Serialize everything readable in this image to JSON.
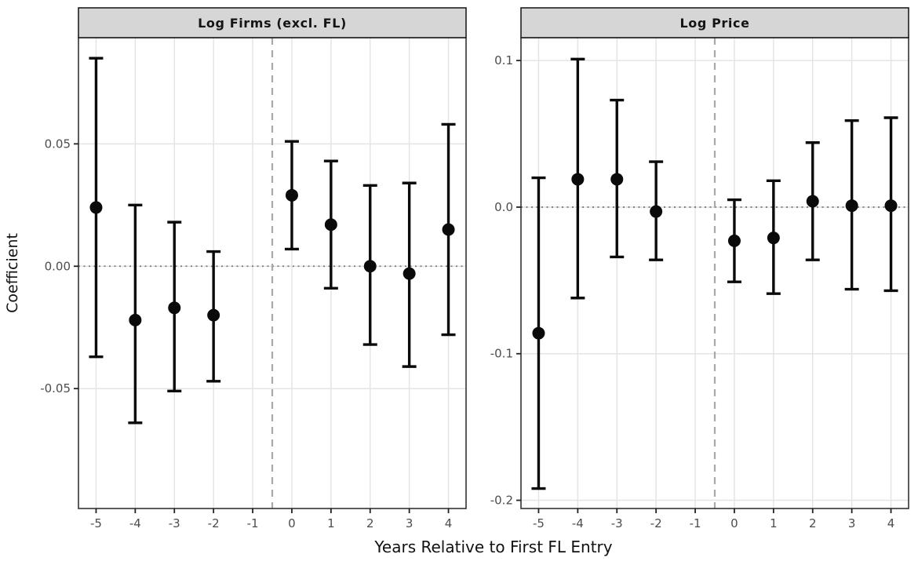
{
  "figure": {
    "ylabel": "Coefficient",
    "xlabel": "Years Relative to First FL Entry",
    "colors": {
      "strip_fill": "#d6d6d6",
      "strip_border": "#1f1f1f",
      "panel_border": "#333333",
      "gridline": "#e4e4e4",
      "tick_label": "#4d4d4d",
      "axis_title": "#111111",
      "zero_line": "#7a7a7a",
      "event_line": "#a9a9a9",
      "data": "#0a0a0a",
      "background": "#ffffff"
    }
  },
  "chart_data": [
    {
      "type": "scatter",
      "title": "Log Firms (excl. FL)",
      "xlabel": "Years Relative to First FL Entry",
      "ylabel": "Coefficient",
      "x": [
        -5,
        -4,
        -3,
        -2,
        0,
        1,
        2,
        3,
        4
      ],
      "values": [
        0.024,
        -0.022,
        -0.017,
        -0.02,
        0.029,
        0.017,
        0.0,
        -0.003,
        0.015
      ],
      "ci_low": [
        -0.037,
        -0.064,
        -0.051,
        -0.047,
        0.007,
        -0.009,
        -0.032,
        -0.041,
        -0.028
      ],
      "ci_high": [
        0.085,
        0.025,
        0.018,
        0.006,
        0.051,
        0.043,
        0.033,
        0.034,
        0.058
      ],
      "xticks": [
        -5,
        -4,
        -3,
        -2,
        -1,
        0,
        1,
        2,
        3,
        4
      ],
      "xtick_labels": [
        "-5",
        "-4",
        "-3",
        "-2",
        "-1",
        "0",
        "1",
        "2",
        "3",
        "4"
      ],
      "yticks": [
        0.05,
        0.0,
        -0.05
      ],
      "ytick_labels": [
        "0.05",
        "0.00",
        "-0.05"
      ],
      "ylim": [
        -0.099,
        0.0934
      ],
      "xlim": [
        -5.45,
        4.45
      ],
      "hline_y": 0,
      "vline_x": -0.5,
      "grid": true,
      "legend": "none"
    },
    {
      "type": "scatter",
      "title": "Log Price",
      "xlabel": "Years Relative to First FL Entry",
      "ylabel": "Coefficient",
      "x": [
        -5,
        -4,
        -3,
        -2,
        0,
        1,
        2,
        3,
        4
      ],
      "values": [
        -0.086,
        0.019,
        0.019,
        -0.003,
        -0.023,
        -0.021,
        0.004,
        0.001,
        0.001
      ],
      "ci_low": [
        -0.192,
        -0.062,
        -0.034,
        -0.036,
        -0.051,
        -0.059,
        -0.036,
        -0.056,
        -0.057
      ],
      "ci_high": [
        0.02,
        0.101,
        0.073,
        0.031,
        0.005,
        0.018,
        0.044,
        0.059,
        0.061
      ],
      "xticks": [
        -5,
        -4,
        -3,
        -2,
        -1,
        0,
        1,
        2,
        3,
        4
      ],
      "xtick_labels": [
        "-5",
        "-4",
        "-3",
        "-2",
        "-1",
        "0",
        "1",
        "2",
        "3",
        "4"
      ],
      "yticks": [
        0.1,
        0.0,
        -0.1,
        -0.2
      ],
      "ytick_labels": [
        "0.1",
        "0.0",
        "-0.1",
        "-0.2"
      ],
      "ylim": [
        -0.2056,
        0.1156
      ],
      "xlim": [
        -5.45,
        4.45
      ],
      "hline_y": 0,
      "vline_x": -0.5,
      "grid": true,
      "legend": "none"
    }
  ]
}
